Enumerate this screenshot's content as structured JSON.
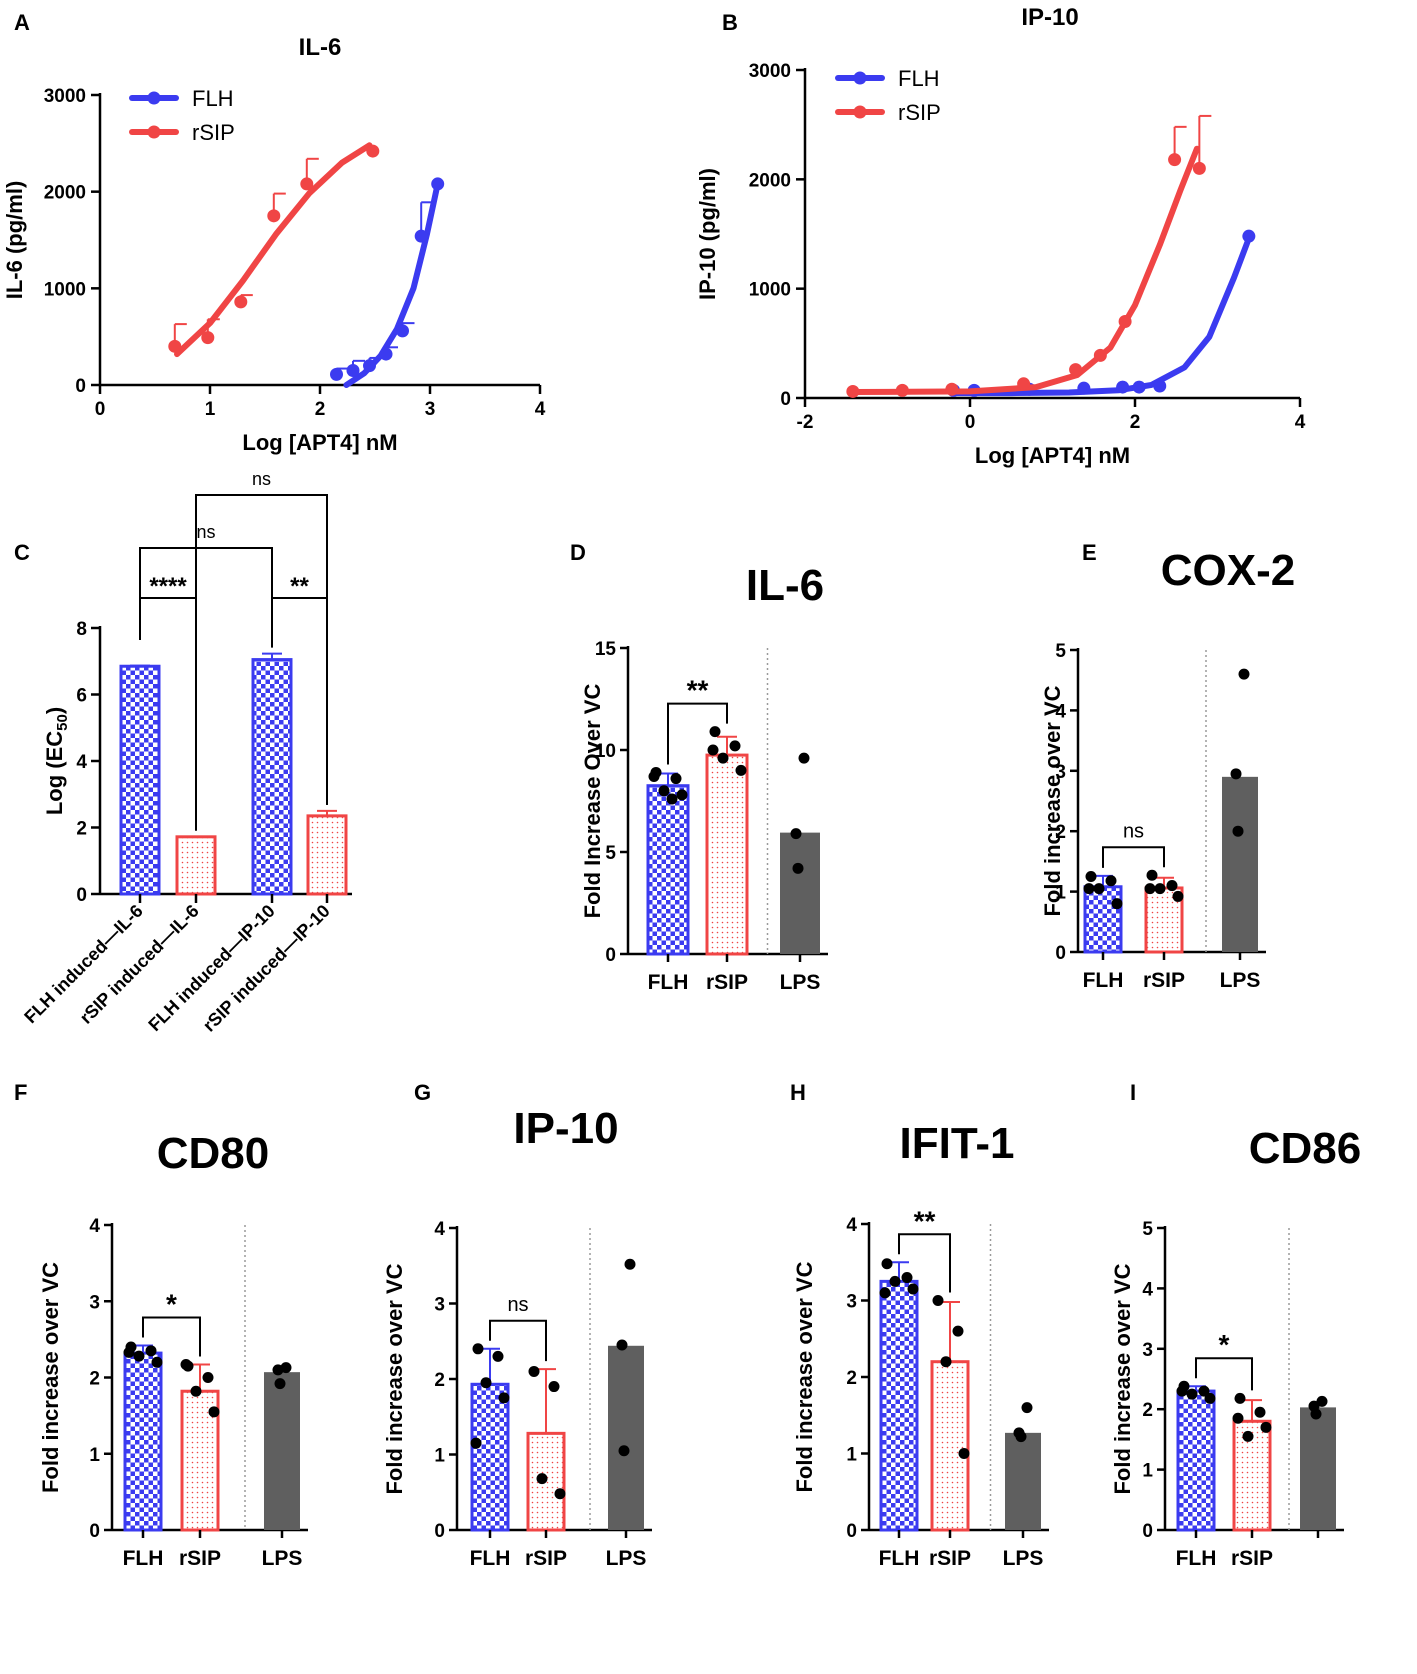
{
  "colors": {
    "flh": "#3b3bf0",
    "rsip": "#f04545",
    "lps": "#5f5f5f",
    "axis": "#000000",
    "dotted": "#9a9a9a"
  },
  "chart_data": [
    {
      "type": "scatter",
      "panel_label": "A",
      "title": "IL-6",
      "xlabel": "Log [APT4] nM",
      "ylabel": "IL-6 (pg/ml)",
      "xlim": [
        0,
        4
      ],
      "ylim": [
        0,
        3000
      ],
      "xticks": [
        0,
        1,
        2,
        3,
        4
      ],
      "yticks": [
        0,
        1000,
        2000,
        3000
      ],
      "legend": [
        "FLH",
        "rSIP"
      ],
      "legend_position": "top-left",
      "series": [
        {
          "name": "FLH",
          "color": "flh",
          "points": [
            {
              "x": 2.15,
              "y": 110,
              "err": 60
            },
            {
              "x": 2.3,
              "y": 150,
              "err": 100
            },
            {
              "x": 2.45,
              "y": 200,
              "err": 80
            },
            {
              "x": 2.6,
              "y": 320,
              "err": 70
            },
            {
              "x": 2.75,
              "y": 560,
              "err": 80
            },
            {
              "x": 2.92,
              "y": 1540,
              "err": 350
            },
            {
              "x": 3.07,
              "y": 2080,
              "err": 0
            }
          ],
          "fit": [
            {
              "x": 2.24,
              "y": 0
            },
            {
              "x": 2.4,
              "y": 120
            },
            {
              "x": 2.55,
              "y": 300
            },
            {
              "x": 2.7,
              "y": 580
            },
            {
              "x": 2.85,
              "y": 1000
            },
            {
              "x": 2.97,
              "y": 1550
            },
            {
              "x": 3.07,
              "y": 2080
            }
          ]
        },
        {
          "name": "rSIP",
          "color": "rsip",
          "points": [
            {
              "x": 0.68,
              "y": 400,
              "err": 230
            },
            {
              "x": 0.98,
              "y": 490,
              "err": 190
            },
            {
              "x": 1.28,
              "y": 860,
              "err": 70
            },
            {
              "x": 1.58,
              "y": 1750,
              "err": 230
            },
            {
              "x": 1.88,
              "y": 2080,
              "err": 260
            },
            {
              "x": 2.48,
              "y": 2420,
              "err": 0
            }
          ],
          "fit": [
            {
              "x": 0.7,
              "y": 320
            },
            {
              "x": 1.0,
              "y": 640
            },
            {
              "x": 1.3,
              "y": 1080
            },
            {
              "x": 1.6,
              "y": 1560
            },
            {
              "x": 1.9,
              "y": 1980
            },
            {
              "x": 2.2,
              "y": 2300
            },
            {
              "x": 2.45,
              "y": 2480
            }
          ]
        }
      ]
    },
    {
      "type": "scatter",
      "panel_label": "B",
      "title": "IP-10",
      "xlabel": "Log [APT4] nM",
      "ylabel": "IP-10 (pg/ml)",
      "xlim": [
        -2,
        4
      ],
      "ylim": [
        0,
        3000
      ],
      "xticks": [
        -2,
        0,
        2,
        4
      ],
      "yticks": [
        0,
        1000,
        2000,
        3000
      ],
      "legend": [
        "FLH",
        "rSIP"
      ],
      "legend_position": "top-left",
      "series": [
        {
          "name": "FLH",
          "color": "flh",
          "points": [
            {
              "x": -0.2,
              "y": 70,
              "err": 0
            },
            {
              "x": 0.05,
              "y": 70,
              "err": 0
            },
            {
              "x": 0.72,
              "y": 80,
              "err": 0
            },
            {
              "x": 1.38,
              "y": 90,
              "err": 0
            },
            {
              "x": 1.85,
              "y": 100,
              "err": 0
            },
            {
              "x": 2.05,
              "y": 100,
              "err": 0
            },
            {
              "x": 2.3,
              "y": 110,
              "err": 0
            },
            {
              "x": 3.38,
              "y": 1480,
              "err": 0
            }
          ],
          "fit": [
            {
              "x": -0.2,
              "y": 45
            },
            {
              "x": 0.5,
              "y": 45
            },
            {
              "x": 1.2,
              "y": 50
            },
            {
              "x": 1.8,
              "y": 70
            },
            {
              "x": 2.2,
              "y": 120
            },
            {
              "x": 2.6,
              "y": 280
            },
            {
              "x": 2.9,
              "y": 560
            },
            {
              "x": 3.2,
              "y": 1100
            },
            {
              "x": 3.4,
              "y": 1500
            }
          ]
        },
        {
          "name": "rSIP",
          "color": "rsip",
          "points": [
            {
              "x": -1.42,
              "y": 60,
              "err": 0
            },
            {
              "x": -0.82,
              "y": 70,
              "err": 0
            },
            {
              "x": -0.22,
              "y": 80,
              "err": 0
            },
            {
              "x": 0.65,
              "y": 130,
              "err": 0
            },
            {
              "x": 1.28,
              "y": 260,
              "err": 0
            },
            {
              "x": 1.58,
              "y": 390,
              "err": 0
            },
            {
              "x": 1.88,
              "y": 700,
              "err": 0
            },
            {
              "x": 2.48,
              "y": 2180,
              "err": 300
            },
            {
              "x": 2.78,
              "y": 2100,
              "err": 480
            }
          ],
          "fit": [
            {
              "x": -1.4,
              "y": 55
            },
            {
              "x": 0.0,
              "y": 60
            },
            {
              "x": 0.8,
              "y": 100
            },
            {
              "x": 1.3,
              "y": 210
            },
            {
              "x": 1.7,
              "y": 460
            },
            {
              "x": 2.0,
              "y": 850
            },
            {
              "x": 2.3,
              "y": 1400
            },
            {
              "x": 2.55,
              "y": 1900
            },
            {
              "x": 2.75,
              "y": 2280
            }
          ]
        }
      ]
    },
    {
      "type": "bar",
      "panel_label": "C",
      "title": "",
      "ylabel_main": "Log (EC",
      "ylabel_sub": "50",
      "ylabel_end": ")",
      "ylim": [
        0,
        8
      ],
      "yticks": [
        0,
        2,
        4,
        6,
        8
      ],
      "categories": [
        "FLH induced—IL-6",
        "rSIP induced—IL-6",
        "FLH induced—IP-10",
        "rSIP induced—IP-10"
      ],
      "values": [
        6.85,
        1.72,
        7.05,
        2.35
      ],
      "errors": [
        0.02,
        0.0,
        0.18,
        0.15
      ],
      "bar_colors": [
        "flh",
        "rsip",
        "flh",
        "rsip"
      ],
      "significance": [
        {
          "from": 0,
          "to": 1,
          "label": "****"
        },
        {
          "from": 2,
          "to": 3,
          "label": "**"
        },
        {
          "from": 0,
          "to": 2,
          "label": "ns"
        },
        {
          "from": 1,
          "to": 3,
          "label": "ns"
        }
      ]
    },
    {
      "type": "bar",
      "panel_label": "D",
      "title": "IL-6",
      "ylabel": "Fold Increase Over VC",
      "ylim": [
        0,
        15
      ],
      "yticks": [
        0,
        5,
        10,
        15
      ],
      "categories": [
        "FLH",
        "rSIP",
        "LPS"
      ],
      "values": [
        8.25,
        9.75,
        5.95
      ],
      "errors": [
        0.6,
        0.9,
        0
      ],
      "points": [
        [
          8.9,
          8.6,
          8.0,
          7.8,
          8.7,
          7.6
        ],
        [
          10.9,
          10.2,
          9.6,
          9.0,
          10.0
        ],
        [
          9.6,
          5.9,
          4.2
        ]
      ],
      "significance": [
        {
          "from": 0,
          "to": 1,
          "label": "**"
        }
      ]
    },
    {
      "type": "bar",
      "panel_label": "E",
      "title": "COX-2",
      "ylabel": "Fold increase over VC",
      "ylim": [
        0,
        5
      ],
      "yticks": [
        0,
        1,
        2,
        3,
        4,
        5
      ],
      "categories": [
        "FLH",
        "rSIP",
        "LPS"
      ],
      "values": [
        1.08,
        1.06,
        2.9
      ],
      "errors": [
        0.18,
        0.17,
        0
      ],
      "points": [
        [
          1.25,
          1.18,
          1.05,
          0.8,
          1.05
        ],
        [
          1.27,
          1.1,
          1.05,
          0.92,
          1.05
        ],
        [
          4.6,
          2.95,
          2.0
        ]
      ],
      "significance": [
        {
          "from": 0,
          "to": 1,
          "label": "ns"
        }
      ]
    },
    {
      "type": "bar",
      "panel_label": "F",
      "title": "CD80",
      "ylabel": "Fold increase over VC",
      "ylim": [
        0,
        4
      ],
      "yticks": [
        0,
        1,
        2,
        3,
        4
      ],
      "categories": [
        "FLH",
        "rSIP",
        "LPS"
      ],
      "values": [
        2.32,
        1.82,
        2.07
      ],
      "errors": [
        0.1,
        0.35,
        0
      ],
      "points": [
        [
          2.4,
          2.35,
          2.28,
          2.2,
          2.33
        ],
        [
          2.15,
          2.0,
          1.82,
          1.55,
          2.17
        ],
        [
          2.13,
          2.1,
          1.92
        ]
      ],
      "significance": [
        {
          "from": 0,
          "to": 1,
          "label": "*"
        }
      ]
    },
    {
      "type": "bar",
      "panel_label": "G",
      "title": "IP-10",
      "ylabel": "Fold increase over VC",
      "ylim": [
        0,
        4
      ],
      "yticks": [
        0,
        1,
        2,
        3,
        4
      ],
      "categories": [
        "FLH",
        "rSIP",
        "LPS"
      ],
      "values": [
        1.93,
        1.28,
        2.44
      ],
      "errors": [
        0.47,
        0.85,
        0
      ],
      "points": [
        [
          2.4,
          2.3,
          1.95,
          1.75,
          1.15
        ],
        [
          2.1,
          1.9,
          0.68,
          0.48
        ],
        [
          3.52,
          2.45,
          1.05
        ]
      ],
      "significance": [
        {
          "from": 0,
          "to": 1,
          "label": "ns"
        }
      ]
    },
    {
      "type": "bar",
      "panel_label": "H",
      "title": "IFIT-1",
      "ylabel": "Fold increase over VC",
      "ylim": [
        0,
        4
      ],
      "yticks": [
        0,
        1,
        2,
        3,
        4
      ],
      "categories": [
        "FLH",
        "rSIP",
        "LPS"
      ],
      "values": [
        3.25,
        2.2,
        1.27
      ],
      "errors": [
        0.25,
        0.78,
        0
      ],
      "points": [
        [
          3.48,
          3.3,
          3.25,
          3.15,
          3.1
        ],
        [
          3.0,
          2.6,
          2.2,
          1.0
        ],
        [
          1.6,
          1.27,
          1.22
        ]
      ],
      "significance": [
        {
          "from": 0,
          "to": 1,
          "label": "**"
        }
      ]
    },
    {
      "type": "bar",
      "panel_label": "I",
      "title": "CD86",
      "ylabel": "Fold increase over VC",
      "ylim": [
        0,
        5
      ],
      "yticks": [
        0,
        1,
        2,
        3,
        4,
        5
      ],
      "categories": [
        "FLH",
        "rSIP",
        ""
      ],
      "values": [
        2.3,
        1.8,
        2.03
      ],
      "errors": [
        0.08,
        0.35,
        0
      ],
      "points": [
        [
          2.38,
          2.3,
          2.25,
          2.18,
          2.3
        ],
        [
          2.18,
          1.95,
          1.55,
          1.7,
          1.85
        ],
        [
          2.13,
          2.05,
          1.92
        ]
      ],
      "significance": [
        {
          "from": 0,
          "to": 1,
          "label": "*"
        }
      ]
    }
  ]
}
